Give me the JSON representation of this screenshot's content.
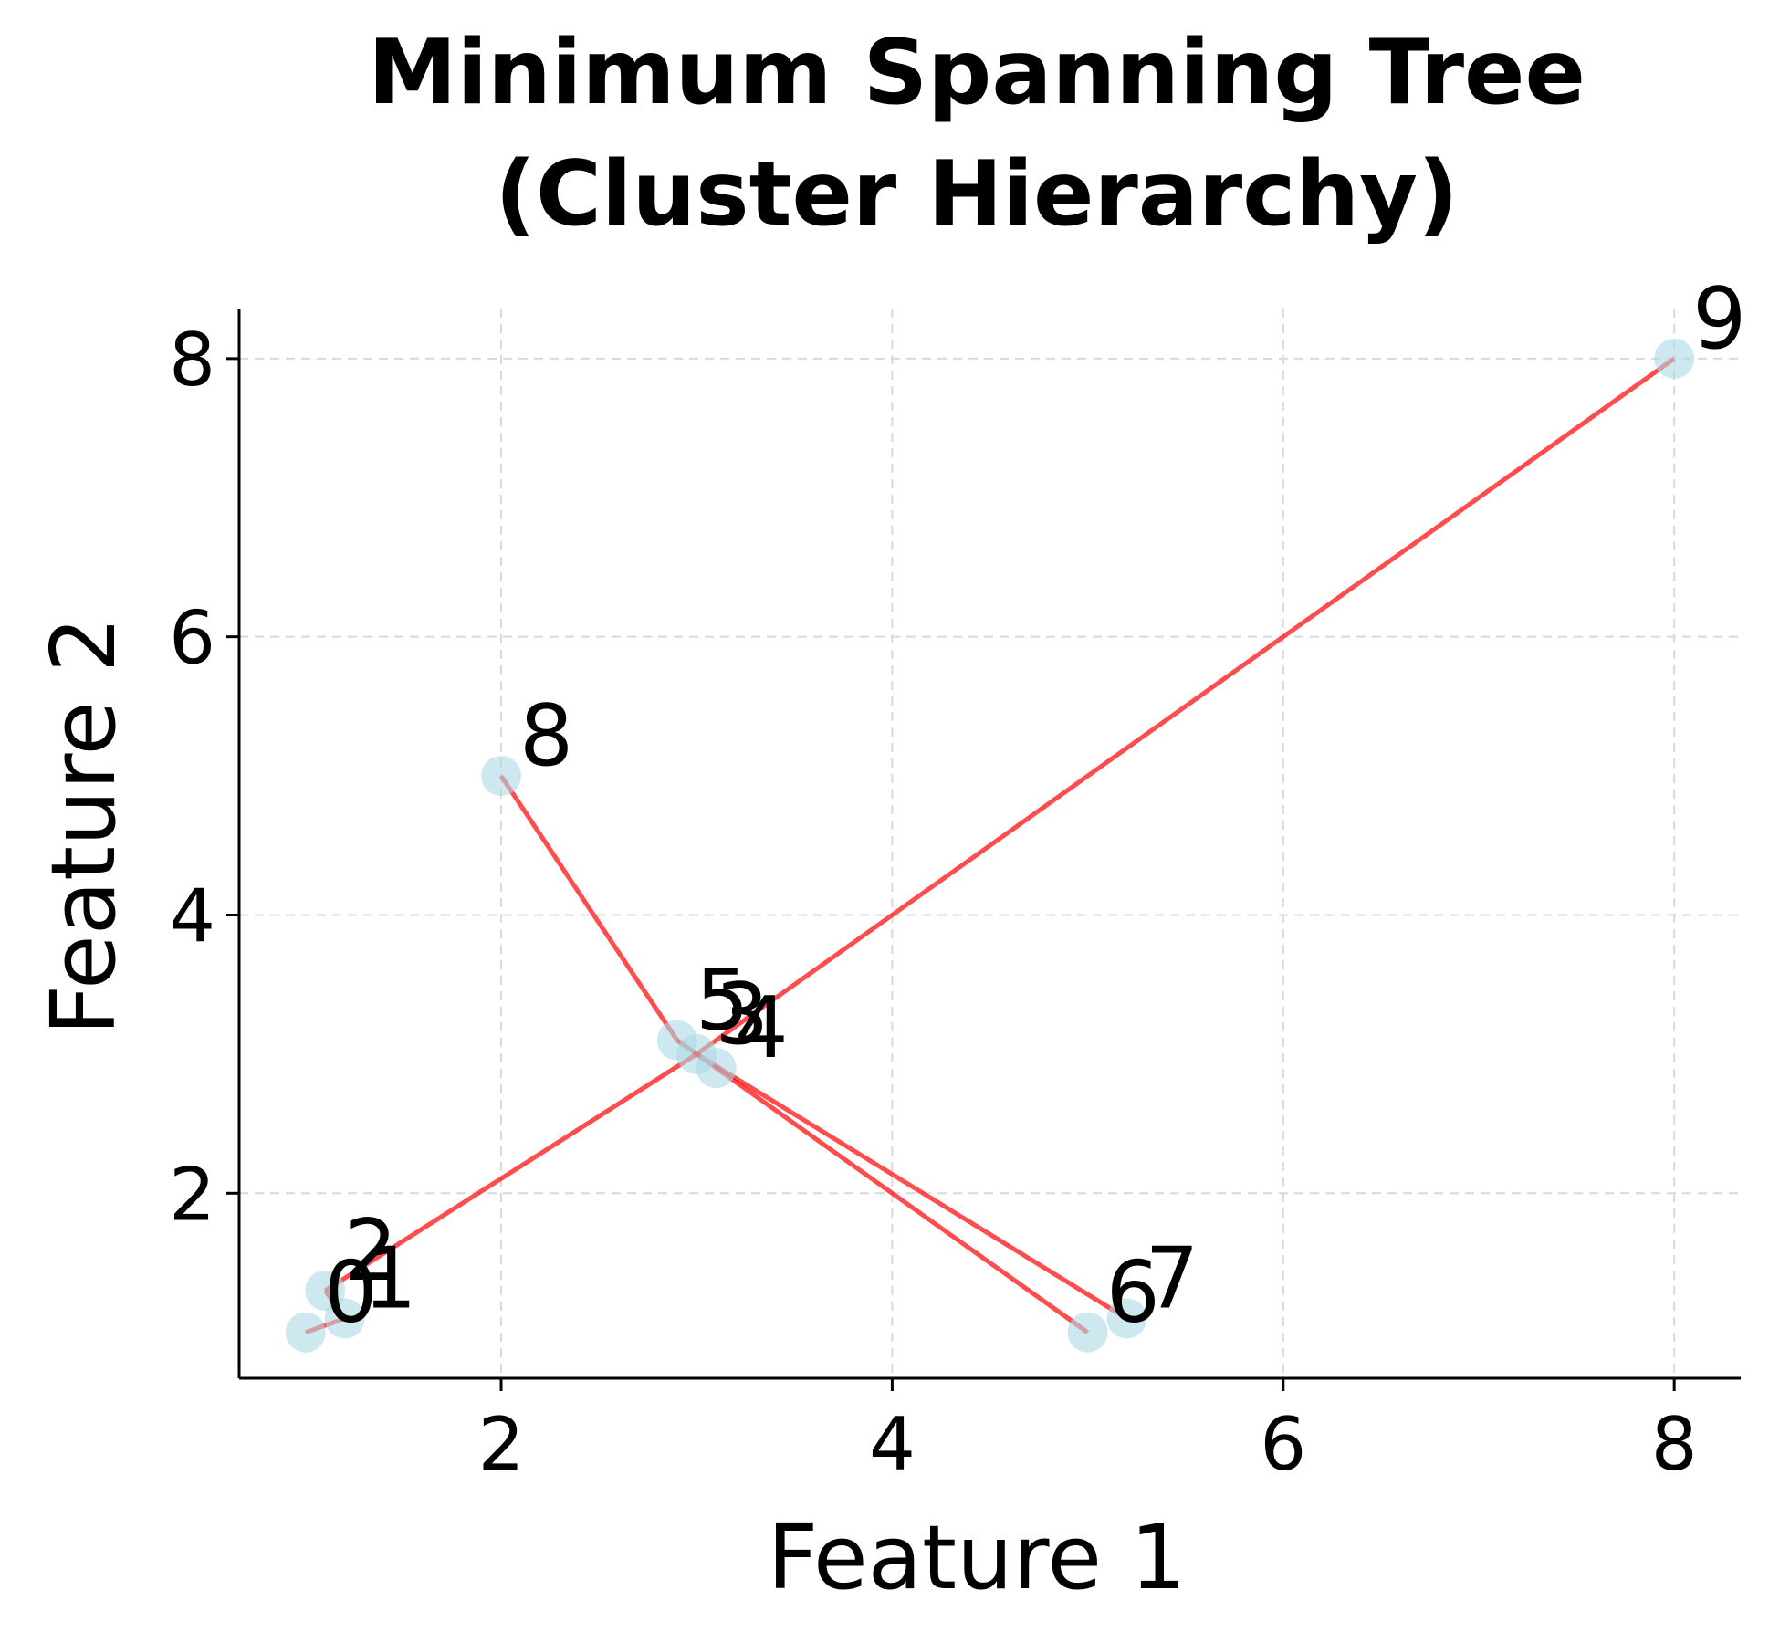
{
  "chart_data": {
    "type": "scatter",
    "title_lines": [
      "Minimum Spanning Tree",
      "(Cluster Hierarchy)"
    ],
    "xlabel": "Feature 1",
    "ylabel": "Feature 2",
    "xlim": [
      0.66,
      8.34
    ],
    "ylim": [
      0.67,
      8.36
    ],
    "xticks": [
      2,
      4,
      6,
      8
    ],
    "yticks": [
      2,
      4,
      6,
      8
    ],
    "grid": true,
    "point_color": "#add8e6",
    "edge_color": "#ff0000",
    "points": [
      {
        "label": "0",
        "x": 1.0,
        "y": 1.0
      },
      {
        "label": "1",
        "x": 1.2,
        "y": 1.1
      },
      {
        "label": "2",
        "x": 1.1,
        "y": 1.3
      },
      {
        "label": "3",
        "x": 3.0,
        "y": 3.0
      },
      {
        "label": "4",
        "x": 3.1,
        "y": 2.9
      },
      {
        "label": "5",
        "x": 2.9,
        "y": 3.1
      },
      {
        "label": "6",
        "x": 5.0,
        "y": 1.0
      },
      {
        "label": "7",
        "x": 5.2,
        "y": 1.1
      },
      {
        "label": "8",
        "x": 2.0,
        "y": 5.0
      },
      {
        "label": "9",
        "x": 8.0,
        "y": 8.0
      }
    ],
    "edges": [
      [
        0,
        1
      ],
      [
        1,
        2
      ],
      [
        2,
        3
      ],
      [
        3,
        5
      ],
      [
        3,
        7
      ],
      [
        5,
        6
      ],
      [
        5,
        8
      ],
      [
        3,
        9
      ]
    ]
  }
}
